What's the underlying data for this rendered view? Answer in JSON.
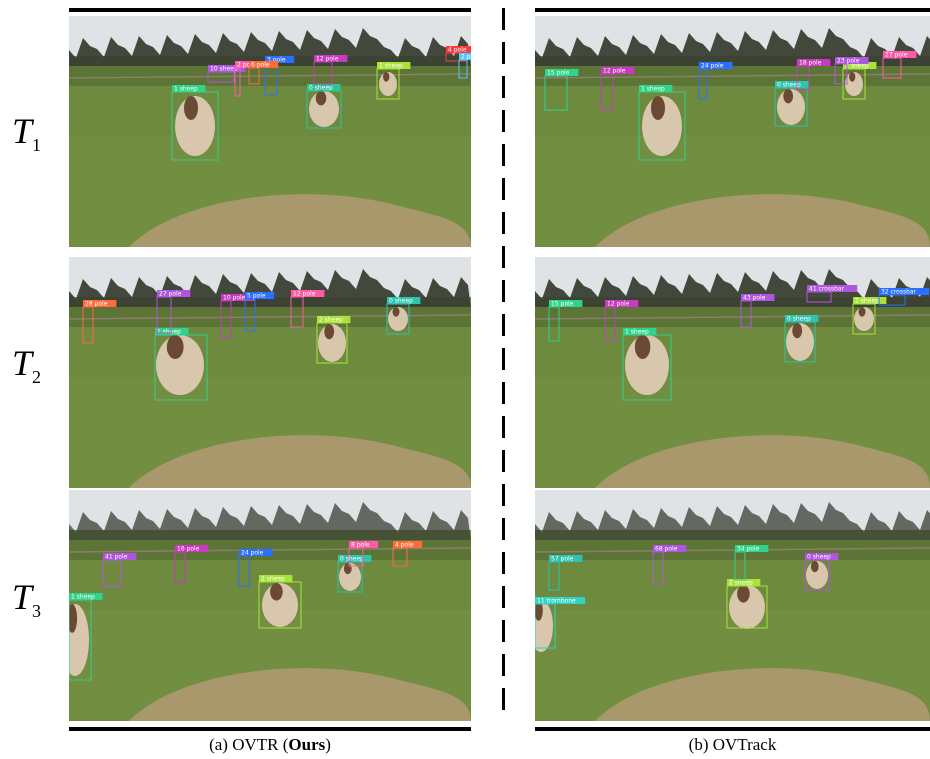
{
  "rows": [
    {
      "label_main": "T",
      "label_sub": "1"
    },
    {
      "label_main": "T",
      "label_sub": "2"
    },
    {
      "label_main": "T",
      "label_sub": "3"
    }
  ],
  "columns": [
    {
      "caption_prefix": "(a) OVTR (",
      "caption_bold": "Ours",
      "caption_suffix": ")"
    },
    {
      "caption_prefix": "(b) OVTrack",
      "caption_bold": "",
      "caption_suffix": ""
    }
  ],
  "colors": {
    "sky": "#dfe3e6",
    "trees": "#3a3f33",
    "grass": "#6e8a3e",
    "dirt": "#b29a74",
    "sheep": "#d8c7ad"
  },
  "panels": {
    "a1": {
      "boxes": [
        {
          "label": "1 sheep",
          "color": "#2fd38a"
        },
        {
          "label": "0 sheep",
          "color": "#2fc39a"
        },
        {
          "label": "1 sheep",
          "color": "#a8e23a"
        },
        {
          "label": "10 sheep",
          "color": "#b055e0"
        },
        {
          "label": "2 pole",
          "color": "#ff5aa8"
        },
        {
          "label": "12 pole",
          "color": "#c83ac0"
        },
        {
          "label": "3 pole",
          "color": "#2a6fff"
        },
        {
          "label": "6 pole",
          "color": "#ff6a3a"
        },
        {
          "label": "4 pole",
          "color": "#ff3a3a"
        },
        {
          "label": "2 pole",
          "color": "#4fc8ff"
        }
      ]
    },
    "b1": {
      "boxes": [
        {
          "label": "1 sheep",
          "color": "#2fd38a"
        },
        {
          "label": "0 sheep",
          "color": "#2fc3b0"
        },
        {
          "label": "2 sheep",
          "color": "#a8e23a"
        },
        {
          "label": "15 pole",
          "color": "#2fd38a"
        },
        {
          "label": "12 pole",
          "color": "#c83ac0"
        },
        {
          "label": "24 pole",
          "color": "#2a6fff"
        },
        {
          "label": "18 pole",
          "color": "#c83ac0"
        },
        {
          "label": "23 pole",
          "color": "#b055e0"
        },
        {
          "label": "27 pole",
          "color": "#ff5aa8"
        }
      ]
    },
    "a2": {
      "boxes": [
        {
          "label": "1 sheep",
          "color": "#2fd38a"
        },
        {
          "label": "2 sheep",
          "color": "#a8e23a"
        },
        {
          "label": "0 sheep",
          "color": "#2fc3b0"
        },
        {
          "label": "27 pole",
          "color": "#b055e0"
        },
        {
          "label": "10 pole",
          "color": "#c83ac0"
        },
        {
          "label": "5 pole",
          "color": "#2a6fff"
        },
        {
          "label": "12 pole",
          "color": "#ff5aa8"
        },
        {
          "label": "28 pole",
          "color": "#ff6a3a"
        }
      ]
    },
    "b2": {
      "boxes": [
        {
          "label": "1 sheep",
          "color": "#2fd38a"
        },
        {
          "label": "0 sheep",
          "color": "#2fc3b0"
        },
        {
          "label": "2 sheep",
          "color": "#a8e23a"
        },
        {
          "label": "41 crossbar",
          "color": "#b055e0"
        },
        {
          "label": "15 pole",
          "color": "#2fd38a"
        },
        {
          "label": "12 pole",
          "color": "#c83ac0"
        },
        {
          "label": "43 pole",
          "color": "#b055e0"
        },
        {
          "label": "32 crossbar",
          "color": "#2a6fff"
        }
      ]
    },
    "a3": {
      "boxes": [
        {
          "label": "1 sheep",
          "color": "#2fd38a"
        },
        {
          "label": "2 sheep",
          "color": "#a8e23a"
        },
        {
          "label": "0 sheep",
          "color": "#2fc3b0"
        },
        {
          "label": "41 pole",
          "color": "#b055e0"
        },
        {
          "label": "16 pole",
          "color": "#c83ac0"
        },
        {
          "label": "24 pole",
          "color": "#2a6fff"
        },
        {
          "label": "8 pole",
          "color": "#ff5aa8"
        },
        {
          "label": "4 pole",
          "color": "#ff6a3a"
        }
      ]
    },
    "b3": {
      "boxes": [
        {
          "label": "2 sheep",
          "color": "#a8e23a"
        },
        {
          "label": "0 sheep",
          "color": "#b055e0"
        },
        {
          "label": "57 pole",
          "color": "#2fc3b0"
        },
        {
          "label": "68 pole",
          "color": "#b055e0"
        },
        {
          "label": "11 trombone",
          "color": "#2fd3c0"
        },
        {
          "label": "34 pole",
          "color": "#2fd38a"
        }
      ]
    }
  }
}
